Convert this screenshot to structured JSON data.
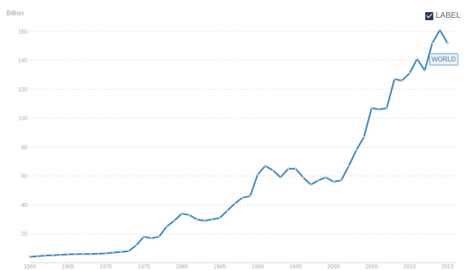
{
  "chart": {
    "unit_label": "Billion",
    "legend_label": "LABEL",
    "series_label": "WORLD"
  },
  "colors": {
    "line": "#3f86b8",
    "grid": "#e4e4e4",
    "axis_text": "#aaaaaa"
  },
  "chart_data": {
    "type": "line",
    "title": "",
    "xlabel": "",
    "ylabel": "Billion",
    "xlim": [
      1960,
      2016
    ],
    "ylim": [
      0,
      170
    ],
    "x_ticks": [
      1960,
      1965,
      1970,
      1975,
      1980,
      1985,
      1990,
      1995,
      2000,
      2005,
      2010,
      2015
    ],
    "y_ticks": [
      20,
      40,
      60,
      80,
      100,
      120,
      140,
      160
    ],
    "grid": true,
    "legend": "top-right",
    "series": [
      {
        "name": "WORLD",
        "x": [
          1960,
          1961,
          1962,
          1963,
          1964,
          1965,
          1966,
          1967,
          1968,
          1969,
          1970,
          1971,
          1972,
          1973,
          1974,
          1975,
          1976,
          1977,
          1978,
          1979,
          1980,
          1981,
          1982,
          1983,
          1984,
          1985,
          1986,
          1987,
          1988,
          1989,
          1990,
          1991,
          1992,
          1993,
          1994,
          1995,
          1996,
          1997,
          1998,
          1999,
          2000,
          2001,
          2002,
          2003,
          2004,
          2005,
          2006,
          2007,
          2008,
          2009,
          2010,
          2011,
          2012,
          2013,
          2014,
          2015
        ],
        "values": [
          4,
          4.5,
          5,
          5.2,
          5.5,
          5.7,
          5.9,
          6,
          6,
          6.2,
          6.5,
          7,
          7.5,
          8,
          12,
          18,
          17,
          18,
          25,
          29,
          34,
          33,
          30,
          29,
          30,
          31,
          36,
          41,
          45,
          46,
          61,
          67,
          64,
          59,
          65,
          65,
          59,
          54,
          57,
          59,
          56,
          57,
          67,
          78,
          87,
          107,
          106,
          107,
          127,
          126,
          131,
          141,
          133,
          152,
          161,
          152
        ]
      }
    ]
  }
}
